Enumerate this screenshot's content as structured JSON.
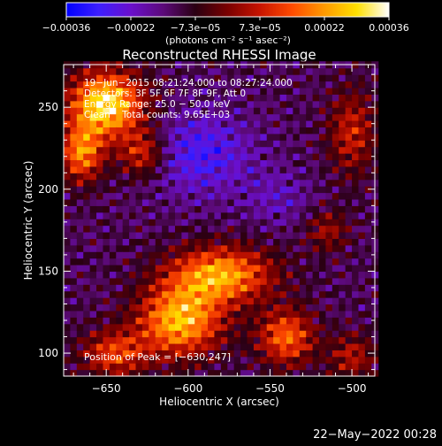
{
  "chart_data": {
    "type": "heatmap",
    "title": "Reconstructed RHESSI Image",
    "xlabel": "Heliocentric X (arcsec)",
    "ylabel": "Heliocentric Y (arcsec)",
    "xlim": [
      -676,
      -486
    ],
    "ylim": [
      86,
      276
    ],
    "x_ticks": [
      {
        "value": -650,
        "label": "−650"
      },
      {
        "value": -600,
        "label": "−600"
      },
      {
        "value": -550,
        "label": "−550"
      },
      {
        "value": -500,
        "label": "−500"
      }
    ],
    "y_ticks": [
      {
        "value": 100,
        "label": "100"
      },
      {
        "value": 150,
        "label": "150"
      },
      {
        "value": 200,
        "label": "200"
      },
      {
        "value": 250,
        "label": "250"
      }
    ],
    "annotations": [
      "19−Jun−2015 08:21:24.000 to 08:27:24.000",
      "Detectors: 3F 5F 6F 7F 8F 9F, Att 0",
      "Energy Range: 25.0 − 50.0 keV",
      "Clean    Total counts: 9.65E+03"
    ],
    "peak_label": "Position of Peak = [−630,247]",
    "colorbar": {
      "range": [
        -0.00036,
        0.00036
      ],
      "tick_labels": [
        "−0.00036",
        "−0.00022",
        "−7.3e−05",
        "7.3e−05",
        "0.00022",
        "0.00036"
      ],
      "unit_label": "(photons cm⁻² s⁻¹ asec⁻²)"
    },
    "colormap": [
      "#0000ff",
      "#3d1fff",
      "#6a0fcc",
      "#5c0a7a",
      "#2a0012",
      "#7a0000",
      "#c81400",
      "#ff4b00",
      "#ff9a00",
      "#ffe000",
      "#ffffff"
    ],
    "grid": false,
    "hotspots": [
      {
        "x": -650,
        "y": 252,
        "sx": 16,
        "sy": 14,
        "a": 1.9
      },
      {
        "x": -665,
        "y": 222,
        "sx": 9,
        "sy": 12,
        "a": 1.3
      },
      {
        "x": -628,
        "y": 222,
        "sx": 10,
        "sy": 10,
        "a": 0.9
      },
      {
        "x": -580,
        "y": 148,
        "sx": 22,
        "sy": 12,
        "a": 1.5
      },
      {
        "x": -605,
        "y": 120,
        "sx": 18,
        "sy": 15,
        "a": 1.6
      },
      {
        "x": -540,
        "y": 110,
        "sx": 12,
        "sy": 12,
        "a": 1.2
      },
      {
        "x": -645,
        "y": 100,
        "sx": 14,
        "sy": 10,
        "a": 1.0
      },
      {
        "x": -500,
        "y": 235,
        "sx": 10,
        "sy": 18,
        "a": 0.8
      },
      {
        "x": -500,
        "y": 98,
        "sx": 10,
        "sy": 10,
        "a": 0.7
      },
      {
        "x": -515,
        "y": 175,
        "sx": 9,
        "sy": 9,
        "a": 0.6
      }
    ],
    "coldspots": [
      {
        "x": -592,
        "y": 222,
        "sx": 22,
        "sy": 18,
        "a": 1.2
      },
      {
        "x": -545,
        "y": 195,
        "sx": 14,
        "sy": 12,
        "a": 0.6
      }
    ]
  },
  "footer": {
    "timestamp": "22−May−2022 00:28"
  }
}
